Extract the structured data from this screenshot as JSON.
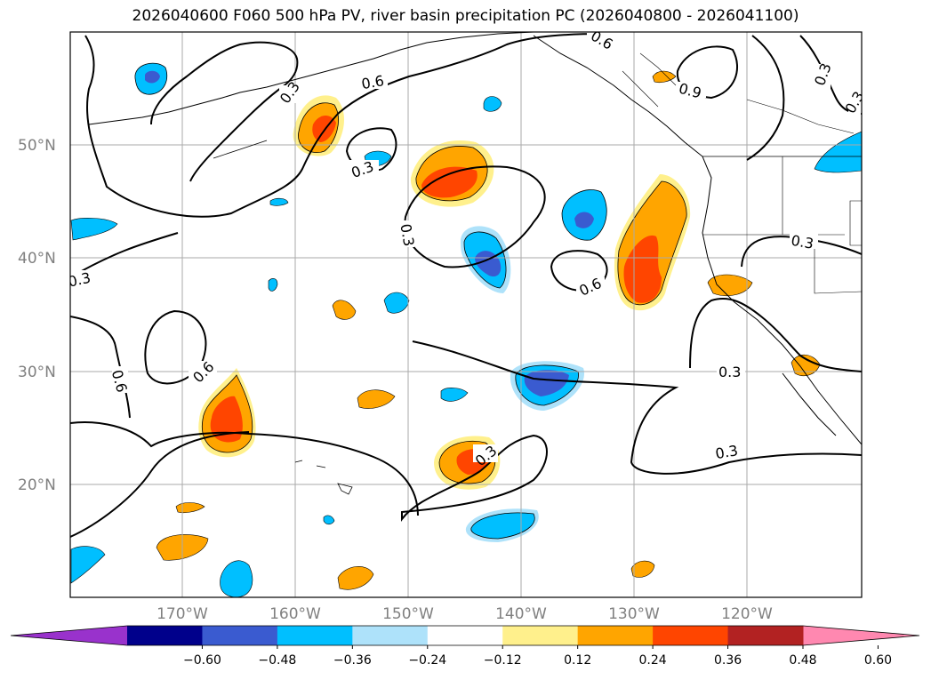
{
  "title": "2026040600 F060 500 hPa PV, river basin precipitation PC (2026040800 - 2026041100)",
  "lat_labels": [
    "50°N",
    "40°N",
    "30°N",
    "20°N"
  ],
  "lon_labels": [
    "170°W",
    "160°W",
    "150°W",
    "140°W",
    "130°W",
    "120°W"
  ],
  "contour_labels": [
    "0.6",
    "0.3",
    "0.9",
    "0.3",
    "0.3",
    "0.3",
    "0.3",
    "0.3",
    "0.6",
    "0.6",
    "0.6",
    "0.3",
    "0.3",
    "0.3",
    "0.6",
    "0.3"
  ],
  "colorbar": {
    "ticks": [
      "−0.60",
      "−0.48",
      "−0.36",
      "−0.24",
      "−0.12",
      "0.12",
      "0.24",
      "0.36",
      "0.48",
      "0.60"
    ],
    "colors": [
      "#9932cc",
      "#00008b",
      "#3a5bd0",
      "#00bfff",
      "#aee2fa",
      "#ffffff",
      "#fff08c",
      "#ffa500",
      "#ff4500",
      "#b22222",
      "#ff88b0"
    ]
  }
}
